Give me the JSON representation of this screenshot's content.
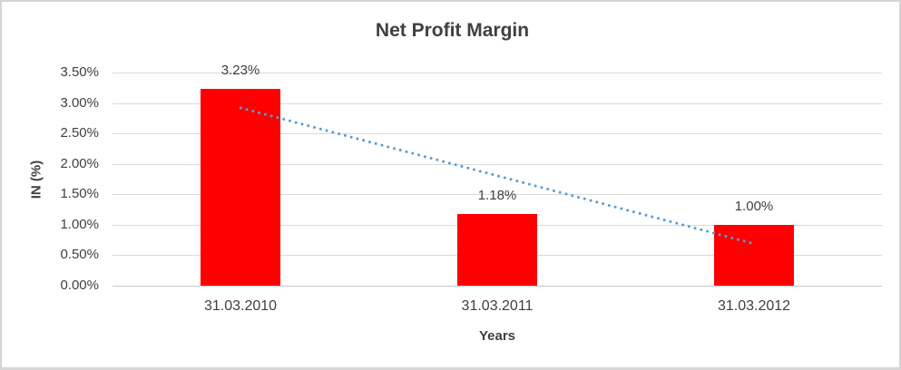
{
  "chart_data": {
    "type": "bar",
    "title": "Net Profit Margin",
    "xlabel": "Years",
    "ylabel": "IN (%)",
    "categories": [
      "31.03.2010",
      "31.03.2011",
      "31.03.2012"
    ],
    "values": [
      3.23,
      1.18,
      1.0
    ],
    "data_labels": [
      "3.23%",
      "1.18%",
      "1.00%"
    ],
    "y_ticks": [
      "0.00%",
      "0.50%",
      "1.00%",
      "1.50%",
      "2.00%",
      "2.50%",
      "3.00%",
      "3.50%"
    ],
    "ylim": [
      0,
      3.5
    ],
    "grid": true,
    "legend": "none",
    "bar_color": "#ff0000",
    "trendline": {
      "type": "linear",
      "style": "dotted",
      "color": "#5b9bd5",
      "start_value": 2.92,
      "end_value": 0.69
    }
  },
  "colors": {
    "text": "#404040",
    "gridline": "#d9d9d9",
    "axis_line": "#c9c9c9",
    "frame_border": "#d5d5d5",
    "background": "#ffffff"
  }
}
